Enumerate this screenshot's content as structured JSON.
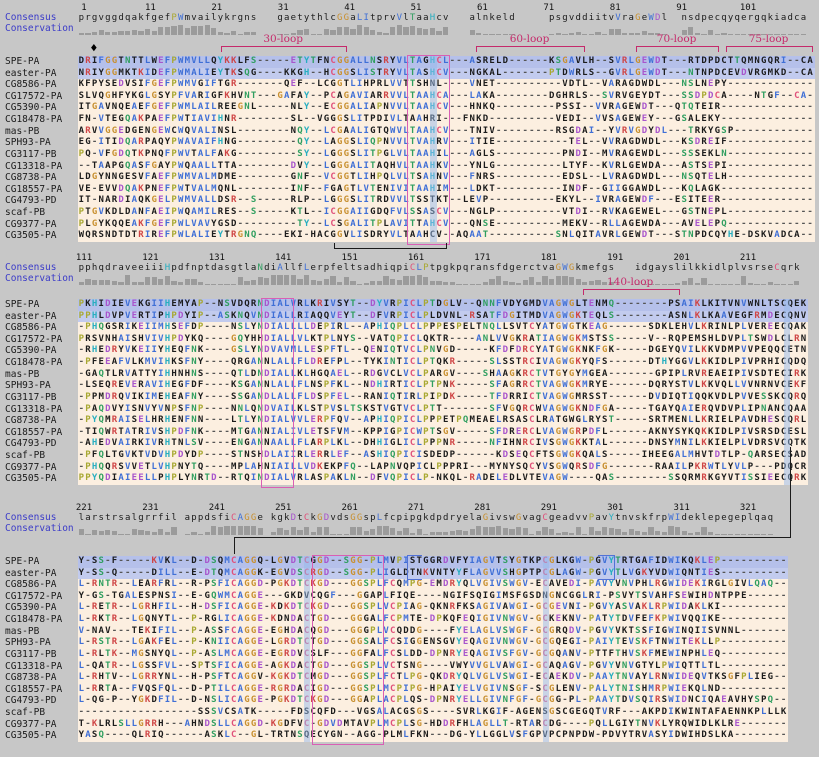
{
  "figure": {
    "type": "multiple-sequence-alignment",
    "track_labels": {
      "consensus": "Consensus",
      "conservation": "Conservation"
    }
  },
  "colors": {
    "background": "#c7c7c7",
    "row_default": "#fcefe0",
    "row_spe": "#b5c0ea",
    "row_easter": "#c2cbee",
    "track_label": "#3c3cc8",
    "bar": "#9b9b9b",
    "loop": "#c52a6b",
    "box": "#d95fb4",
    "connector": "#1a1a1a",
    "pocket": "#5272d6",
    "highlight": "rgba(150,185,235,0.5)",
    "gap": "#555555",
    "letter_default": "#1b1b1b"
  },
  "palette": {
    "groups": {
      "AVLIMFW": "hydrophobic",
      "C": "cysteine",
      "KR": "positive",
      "DE": "negative",
      "NQST": "polar",
      "G": "glycine",
      "P": "proline",
      "HY": "aromatic"
    },
    "group_colors": {
      "hydrophobic": "#3f6fd6",
      "cysteine": "#e0507a",
      "positive": "#cf4545",
      "negative": "#a855cc",
      "polar": "#2f9e5f",
      "glycine": "#c89030",
      "proline": "#a8a832",
      "aromatic": "#28aec0"
    }
  },
  "sequence_names": [
    "SPE-PA",
    "easter-PA",
    "CG8586-PA",
    "CG17572-PA",
    "CG5390-PA",
    "CG18478-PA",
    "mas-PB",
    "SPH93-PA",
    "CG3117-PB",
    "CG13318-PA",
    "CG8738-PA",
    "CG18557-PA",
    "CG4793-PD",
    "scaf-PB",
    "CG9377-PA",
    "CG3505-PA"
  ],
  "blocks": [
    {
      "start": 1,
      "ticks": [
        1,
        11,
        21,
        31,
        41,
        51,
        61,
        71,
        81,
        91,
        101
      ],
      "ncols": 111,
      "consensus": "prgvggdqakfgefPWmvailykrgns   gaetythlcGGaLItprvVlTaaHcv   alnkeld     psgvddiitvVraGeWDl  nsdpecqyqergqkiadca",
      "rows": [
        "DRIFGGTNTTLWEFPWMVLLQYKKLFS-----ETYTFNCGGALLNSRYVLTAGHCL---ASRELD------KSGAVLH--SVRLGEWDT---RTDPDCTTQMNGQRI--CA",
        "NRIYGGMKTKIDEFPWMALIEYTKSQG----KKGH--HCGGSLISTRYVLTASHCV---NGKAL-------PTDWRLS--GVRLGEWDT---NTNPDCEVDVRGMKD--CA",
        "KFPYSEDVSIFGEFPWMVGIFTGR-------QEF--LCGGTLIHPRLVVTTSHNL----VNET----------VDTL--VARAGDWDL---NSLNEPY-------------",
        "SLVQGHFYKGLGSYPFVARIGFKHVNT---GAFAY--PCAGAVIARRVVLTAAHCA---LAKA--------DGHRLS--SVRVGEYDT---SSDPDCA----NTGF--CA-",
        "ITGAVNQEAEFGEFPWMLAILREEGNL-----NLY--ECGGALIAPNVVLTAAHCV---HNKQ---------PSSI--VVRAGEWDT---QTQTEIR--------------",
        "FN-VTEGQAKPAEFPWTIAVIHNR--------SL--VGGGSLITPDIVLTAAHRI---FNKD----------VEDI--VVSAGEWEY---GSALEKY--------------",
        "ARVVGGEDGENGEWCWQVALINSL--------NQY--LCGAALIGTQWVLTAAHCV---TNIV---------RSGDAI--YVRVGDYDL---TRKYGSP------------",
        "EG-ITIDQARPAQYPWAVAIFHNG---------QY--LAGGSLIQPNVVLTVAHRV---ITIE-----------TEL--VVRAGDWDL---KSDREIF-------------",
        "PQ-VFGDQTKPNQFPWVTALFAKG---------SY--LGGGSLITPGLVLTAAHIL---AGLS----------PNDI--MVRAGEWDL---SSSEKLN-------------",
        "--TAAPGQASFGAYPWQAALLTTA--------DVY--LGGGALITAQHVLTAAHKV---YNLG----------LTYF--KVRLGEWDA---ASTSEPI-------------",
        "LDGYNNGESVFAEFPWMVALMDME--------GNF--VCGGTLIHPQLVLTSAHNV---FNRS----------EDSL--LVRAGDWDL---NSQTELH-------------",
        "VE-EVVDQAKPNEFPWTVALMQNL--------INF--FGAGTLVTENIVITAAHIM---LDKT----------INDF--GIIGGAWDL---KQLAGK--------------",
        "IT-NARDIAQKGELPWMVALLDSR--S-----RLP--LGGGSLITRDVVLTSSTKT--LEVP----------EKYL--IVRAGEWDF---ESITEER--------------",
        "PTGVKDLDANFAEIPWQAMILRES--S-----KTL--ICGGAIIGDQFVLSSASCV---NGLP----------VTDI--RVKAGEWEL---GSTNEPL-------------",
        "PLGYKQQEAKFGEFPWLVAVYGSD---------TY--LCSGALITPLAVITTAHCV---QNSE----------MEKV--RLLAGEWDA---AVELEPQ-------------",
        "WQRSNDTDTRIREFPWLALIEYTRGNQ----EKI-HACGGVLISDRYVLTAAHCV--AQAAT----------SNLQITAVRLGEWDT---STNPDCQYHE-DSKVADCA--"
      ]
    },
    {
      "start": 111,
      "ticks": [
        111,
        121,
        131,
        141,
        151,
        161,
        171,
        181,
        191,
        201,
        211
      ],
      "ncols": 110,
      "consensus": "pphqdraveeiiiHpdfnptdasgtlaNdiAllfLerpfeltsadhiqpiCLPtpgkpqransfdgerctvaGWGkmefgs   idgayslilkkidlplvsrseCqrk",
      "rows": [
        "PKHIDIEVEKGIIHEMYAP--NSVDQRNDIALVRLKRIVSYT--DYVRPICLPTDGLV--QNNFVDYGMDVAGWGLTENMQ--------PSAIKLKITVNVWNLTSCQEK",
        "PPHLDVPVERTIPHPDYIP--ASKNQVNDIALLRIAQQVEYT--DFVRPICLPLDVNL-RSATFDGITMDVAGWGKTEQLS--------ASNLKLKAAVEGFRMDECQNV",
        "-PHQGSRIKEIIMHSEFDP----NSLYNDIALLLLDEPIRL--APHIQPLCLPPPESPELTNQLLSVTCYATGWGTKEAG------SDKLEHVLKRINLPLVEREECQAK",
        "PRSVNHAISHVIVHPDYKQ----GQYHHDIALLVLKTPLNYS--VATQPICLQKTR----ANLVVGKRATIAGWGKMSTSS-----V--RQPEMSHLDVPLTSWDLCLRN",
        "-RHEDRYVKEIIYHEQFNK----GSLYNDVAVMLLESPFTL--QENIQTVCLPNVGD-----KFDFDRCYATGWGKNKFGK-----DGEYQVILKKVDMPVVPEQQCETN",
        "-PFEEAFVLKMVIHKSFNY----QRGANNLALLFLDREFPL--TYKINTICLPTQKR-----SLSSTRCIVAGWGKYQFS------DTHYGGVLKKIDLPIVPRHICQDQ",
        "-GAQTLRVATTYIHHNHNS----QTLDNDIALLKLHGQAEL--RDGVCLVCLPARGV----SHAAGKRCTVTGYGYMGEA-------GPIPLRVREAEIPIVSDTECIRK",
        "-LSEQREVERAVIHEGFDF----KSGANNLALLFLNSPFKL--NDHIRTICLPTPNK-----SFAGRRCTVAGWGKMRYE------DQRYSTVLKKVQLLVVNRNVCEKF",
        "-PPMDRQVIKIMEHEAFNY----SSGANDLALLFLDSPFEL--RANIQTIRLPIPDK-----TFDRRICTVAGWGMRSST------DVDIQTIQQKVDLPVVESSKCQRQ",
        "-PAQDVYISNVYVNPSFNP----NNLQNDVAILKLSTPVSLTSKSTVGTVCLPTT-------SFVGQRCWVAGWGKNDFGA-----TGAYQAIERQVDVPLIPNANCQAA",
        "-PYQMRAISELHRHENFNN----LTLYNDIALVVLERPFQV--APHIQPICLPPPETPQMEAELRSASCLRATGWGLRYST-----SRTMENLLKRIELPAVDHESCQRL",
        "-TIQWRTATRIVSHPDFNK----MTGANNIALIVLETSFVM--KPPIGPICWPTSGV-----SFDRERCLVAGWGRPDFL------AKNYSYKQKKIDLPIVSRSDCESL",
        "-AHEDVAIRKIVRHTNLSV----ENGANNAALLFLARPLKL--DHHIGLICLPPPNR-----NFIHNRCIVSGWGKKTAL------DNSYMNILKKIELPLVDRSVCQTK",
        "-PFQLTGVKTVDVHPDYDP----STNSHDLAIIRLERRLEF--ASHIQPICISDEDP------KDSEQCFTSGWGKQALS-----IHEEGALMHVTDTLP-QARSECSAD",
        "-PHQQRSVVETLVHPNYTQ----MPLAHNIAILLVDKEKPFQ--LAPNVQPICLPPPRI---MYNYSQCYVSGWQRSDFG-------RAAILPKRWTLYVLP---PDQCR",
        "PPYQDIAIEELLPHPLYNRTD--RTQINDIALVRLASPAKLN--DFVQPICLP-NKQL-RADELEDLVTEVAGW----QAS--------SSQRMRKGYVTISSIEECQRK"
      ]
    },
    {
      "start": 221,
      "ticks": [
        221,
        231,
        241,
        251,
        261,
        271,
        281,
        291,
        301,
        311,
        321
      ],
      "ncols": 107,
      "consensus": "larstrsalgrrfil appdsfiCAGGe kgkDtCkGDvdsGGspLfcpipgkdpdryelaGivswGvagCgeadvvPavYtnvskfrpWIdeklepegeplqaq",
      "rows": [
        "Y-SS-F-----KVKL--D-DSQMCAGGQ-LGVDTCGGD--SGG-PLMVPISTGGRDVFYIAGVTSYGTKPCGLKGW-PGVYTRTGAFIDWIKQKLEP----------",
        "Y-SS-Q-----DILL--E-DTQMCAGGK-EGVDSCRGD--SGG-PLIGLDTNKVNTYYFLAGVVSHGPTPCGLAGW-PGVYTLVGKYVDWIQNTIES----------",
        "L-RNTR--LEARFRL--R-PSFICAGGD-PGKDTCKGD---GGSPLFCQMPG-EMDRYQLVGIVSWGV-ECAVEDI-PAVYVNVPHLRGWIDEKIRGLGIVLQAQ--",
        "Y-GS-TGALESPNSI--E-GQWMCAGGE---GKDVCQGF---GGAPLFIQE----NGIFSQIGIMSFGSDNGNCGGLRI-PSVYTSVAHFSEWIHDNTPPE------",
        "L-RETR--LGRHFIL--H-DSFICAGGE-KDKDTCKGD---GGSPLVCPIAG-QKNRFKSAGIVAWGI-GCGEVNI-PGVYASVAKLRPWIDAKLKI----------",
        "L-RKTR--LGQNYTL--P-RGLICAGGE-KDNDACTGD---GGGALFCPMTE-DPKQFEQIGIVNWGV-GCKEKNV-PATYTDVFEFKPWIVQQIKE----------",
        "V-NAV---TEKIFIL--P-ASSFCAGGE-EGHDACQGD---GGGPLVCQDDG----FYELAGLVSWGF-GCGRQDV-PGVYVKTSSFIGWINQIISVNNL-------",
        "L-RSTR--LGAKFEL--P-KNIICAGGE-LGRDTCTGD---GGSALFCSIGGENSGVYEQAGIVNWGV-GCGQEGI-PAIYTEVSKFTNWITEKLLP----------",
        "L-RLTK--MGSNYQL--P-ASLMCAGGE-EGRDVCSLF---GGFALFCSLDD-DPNRYEQAGIVSFGV-GCGQANV-PTTFTHVSKFMEWINPHLEQ----------",
        "L-QATR--LGSSFVL--SPTSFICAGGE-AGKDACTGD---GGSPLVCTSNG----VWYVVGLVAWGI-GCAQAGV-PGVYVNVGTYLPWIQTTLTL----------",
        "L-RHTV--LGRRYNL--H-PSFTCAGGV-KGKDTCMGD---GGSPLFCTLPG-QKDRYQLVGLVSWGI-ECAEKDV-PAAYTNVAYLRNWIDEQVTKSGFPLIEG--",
        "L-RRTA--FVQSFQL--D-PTILCAGGE-RGRDACIGD---GGSPLMCPIPG-HPAIYELVGIVNSGF-SCGLENV-PALYTNISHMRPWIEKQLND----------",
        "L-QG-P--YGKDFIL--D-NSLICAGGE-PGKDTCKGD---GGAPLACPLQS-DPNRYELLGIVNFGF-GCGG-PL-PAAYTDVSQIRSWIDNCIQAEAVHYSPQ--",
        "------------------SSSVCSATK-----FDSCQFD---VGSALACGSGS----SVRLKGIF-AGENSGSCGEGQTVRF---AKPDIKWINTAFAENNKPLLLK",
        "T-KLRLSLLGRRH---AHNDSLLCAGGD-KGDFVC-GDVDMTAVPLMCPLSG-HDDRFHLAGLLT-RTARCDG----PQLLGIYTNVKLYRQWIDLKLRE-------",
        "YASQ----QLRIQ------ASKLC--GL-TRTNSQECYGN--AGG-PLMLFKN---DG-YLLGGLVSFGPVPCPNPDW-PDVYTRVASYIDWIHDSLKA--------"
      ]
    }
  ],
  "annotations": {
    "diamond": {
      "block": 0,
      "col": 2.0,
      "symbol": "♦"
    },
    "loops": [
      {
        "label": "30-loop",
        "block": 0,
        "col_start": 21.6,
        "col_end": 40.2
      },
      {
        "label": "60-loop",
        "block": 0,
        "col_start": 60.0,
        "col_end": 76.0
      },
      {
        "label": "70-loop",
        "block": 0,
        "col_start": 84.0,
        "col_end": 96.3
      },
      {
        "label": "75-loop",
        "block": 0,
        "col_start": 97.6,
        "col_end": 110.4
      },
      {
        "label": "140-loop",
        "block": 1,
        "col_start": 76.0,
        "col_end": 90.3
      }
    ],
    "boxes": [
      {
        "block": 0,
        "col_start": 49.6,
        "col_end": 55.7
      },
      {
        "block": 1,
        "col_start": 27.6,
        "col_end": 32.3
      },
      {
        "block": 2,
        "col_start": 35.2,
        "col_end": 45.8
      }
    ],
    "column_highlights": [
      {
        "block": 0,
        "col": 53
      },
      {
        "block": 1,
        "col": 106.3
      },
      {
        "block": 2,
        "col": 34
      },
      {
        "block": 2,
        "col": 70
      }
    ],
    "pocket_brackets": [
      {
        "block": 2,
        "col_start": 49.5,
        "col_end": 51.7,
        "open": "right"
      },
      {
        "block": 2,
        "col_start": 78.3,
        "col_end": 80.7,
        "open": "left"
      }
    ],
    "intra_bracket": {
      "block": 0,
      "col_start": 38.6,
      "col_end": 55.2
    },
    "disulfide_connector": {
      "from_block": 1,
      "from_col": 106.8,
      "to_block": 2,
      "to_col": 23
    }
  }
}
